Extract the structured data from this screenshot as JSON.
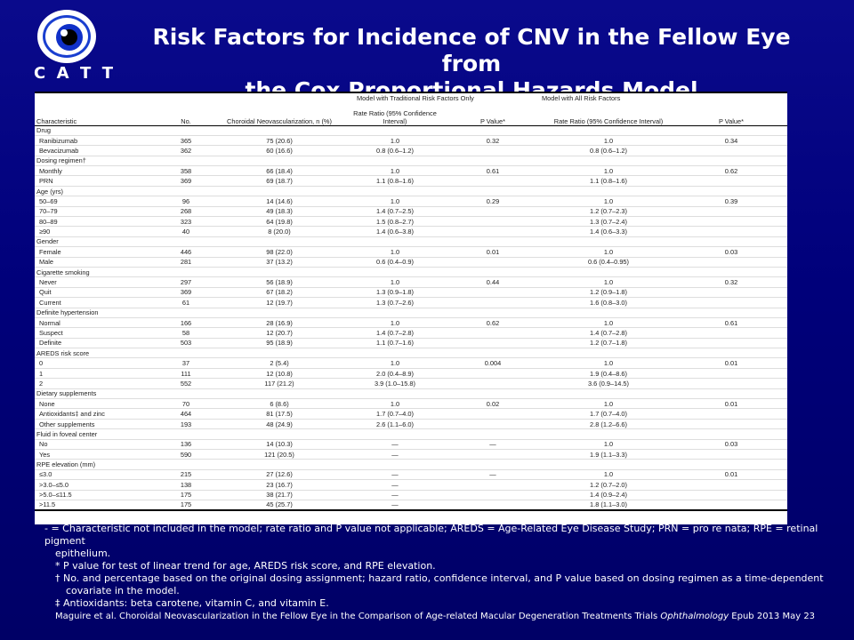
{
  "logo": {
    "letters": [
      "C",
      "A",
      "T",
      "T"
    ],
    "icon": "eye-icon"
  },
  "title": {
    "line1": "Risk Factors for Incidence of CNV in the Fellow Eye from",
    "line2": "the Cox Proportional Hazards Model"
  },
  "table": {
    "group_headers": {
      "traditional": "Model with Traditional Risk Factors Only",
      "all": "Model with All Risk Factors"
    },
    "columns": [
      "Characteristic",
      "No.",
      "Choroidal Neovascularization, n (%)",
      "Rate Ratio (95% Confidence Interval)",
      "P Value*",
      "Rate Ratio (95% Confidence Interval)",
      "P Value*"
    ],
    "rows": [
      {
        "k": "g",
        "label": "Drug"
      },
      {
        "k": "d",
        "c": [
          "Ranibizumab",
          "365",
          "75 (20.6)",
          "1.0",
          "0.32",
          "1.0",
          "0.34"
        ]
      },
      {
        "k": "d",
        "c": [
          "Bevacizumab",
          "362",
          "60 (16.6)",
          "0.8 (0.6–1.2)",
          "",
          "0.8 (0.6–1.2)",
          ""
        ]
      },
      {
        "k": "g",
        "label": "Dosing regimen†"
      },
      {
        "k": "d",
        "c": [
          "Monthly",
          "358",
          "66 (18.4)",
          "1.0",
          "0.61",
          "1.0",
          "0.62"
        ]
      },
      {
        "k": "d",
        "c": [
          "PRN",
          "369",
          "69 (18.7)",
          "1.1 (0.8–1.6)",
          "",
          "1.1 (0.8–1.6)",
          ""
        ]
      },
      {
        "k": "g",
        "label": "Age (yrs)"
      },
      {
        "k": "d",
        "c": [
          "50–69",
          "96",
          "14 (14.6)",
          "1.0",
          "0.29",
          "1.0",
          "0.39"
        ]
      },
      {
        "k": "d",
        "c": [
          "70–79",
          "268",
          "49 (18.3)",
          "1.4 (0.7–2.5)",
          "",
          "1.2 (0.7–2.3)",
          ""
        ]
      },
      {
        "k": "d",
        "c": [
          "80–89",
          "323",
          "64 (19.8)",
          "1.5 (0.8–2.7)",
          "",
          "1.3 (0.7–2.4)",
          ""
        ]
      },
      {
        "k": "d",
        "c": [
          "≥90",
          "40",
          "8 (20.0)",
          "1.4 (0.6–3.8)",
          "",
          "1.4 (0.6–3.3)",
          ""
        ]
      },
      {
        "k": "g",
        "label": "Gender"
      },
      {
        "k": "d",
        "c": [
          "Female",
          "446",
          "98 (22.0)",
          "1.0",
          "0.01",
          "1.0",
          "0.03"
        ]
      },
      {
        "k": "d",
        "c": [
          "Male",
          "281",
          "37 (13.2)",
          "0.6 (0.4–0.9)",
          "",
          "0.6 (0.4–0.95)",
          ""
        ]
      },
      {
        "k": "g",
        "label": "Cigarette smoking"
      },
      {
        "k": "d",
        "c": [
          "Never",
          "297",
          "56 (18.9)",
          "1.0",
          "0.44",
          "1.0",
          "0.32"
        ]
      },
      {
        "k": "d",
        "c": [
          "Quit",
          "369",
          "67 (18.2)",
          "1.3 (0.9–1.8)",
          "",
          "1.2 (0.9–1.8)",
          ""
        ]
      },
      {
        "k": "d",
        "c": [
          "Current",
          "61",
          "12 (19.7)",
          "1.3 (0.7–2.6)",
          "",
          "1.6 (0.8–3.0)",
          ""
        ]
      },
      {
        "k": "g",
        "label": "Definite hypertension"
      },
      {
        "k": "d",
        "c": [
          "Normal",
          "166",
          "28 (16.9)",
          "1.0",
          "0.62",
          "1.0",
          "0.61"
        ]
      },
      {
        "k": "d",
        "c": [
          "Suspect",
          "58",
          "12 (20.7)",
          "1.4 (0.7–2.8)",
          "",
          "1.4 (0.7–2.8)",
          ""
        ]
      },
      {
        "k": "d",
        "c": [
          "Definite",
          "503",
          "95 (18.9)",
          "1.1 (0.7–1.6)",
          "",
          "1.2 (0.7–1.8)",
          ""
        ]
      },
      {
        "k": "g",
        "label": "AREDS risk score"
      },
      {
        "k": "d",
        "c": [
          "0",
          "37",
          "2 (5.4)",
          "1.0",
          "0.004",
          "1.0",
          "0.01"
        ]
      },
      {
        "k": "d",
        "c": [
          "1",
          "111",
          "12 (10.8)",
          "2.0 (0.4–8.9)",
          "",
          "1.9 (0.4–8.6)",
          ""
        ]
      },
      {
        "k": "d",
        "c": [
          "2",
          "552",
          "117 (21.2)",
          "3.9 (1.0–15.8)",
          "",
          "3.6 (0.9–14.5)",
          ""
        ]
      },
      {
        "k": "g",
        "label": "Dietary supplements"
      },
      {
        "k": "d",
        "c": [
          "None",
          "70",
          "6 (8.6)",
          "1.0",
          "0.02",
          "1.0",
          "0.01"
        ]
      },
      {
        "k": "d",
        "c": [
          "Antioxidants‡ and zinc",
          "464",
          "81 (17.5)",
          "1.7 (0.7–4.0)",
          "",
          "1.7 (0.7–4.0)",
          ""
        ]
      },
      {
        "k": "d",
        "c": [
          "Other supplements",
          "193",
          "48 (24.9)",
          "2.6 (1.1–6.0)",
          "",
          "2.8 (1.2–6.6)",
          ""
        ]
      },
      {
        "k": "g",
        "label": "Fluid in foveal center"
      },
      {
        "k": "d",
        "c": [
          "No",
          "136",
          "14 (10.3)",
          "—",
          "—",
          "1.0",
          "0.03"
        ]
      },
      {
        "k": "d",
        "c": [
          "Yes",
          "590",
          "121 (20.5)",
          "—",
          "",
          "1.9 (1.1–3.3)",
          ""
        ]
      },
      {
        "k": "g",
        "label": "RPE elevation (mm)"
      },
      {
        "k": "d",
        "c": [
          "≤3.0",
          "215",
          "27 (12.6)",
          "—",
          "—",
          "1.0",
          "0.01"
        ]
      },
      {
        "k": "d",
        "c": [
          ">3.0–≤5.0",
          "138",
          "23 (16.7)",
          "—",
          "",
          "1.2 (0.7–2.0)",
          ""
        ]
      },
      {
        "k": "d",
        "c": [
          ">5.0–≤11.5",
          "175",
          "38 (21.7)",
          "—",
          "",
          "1.4 (0.9–2.4)",
          ""
        ]
      },
      {
        "k": "d",
        "c": [
          ">11.5",
          "175",
          "45 (25.7)",
          "—",
          "",
          "1.8 (1.1–3.0)",
          ""
        ]
      }
    ]
  },
  "notes": {
    "dash": "- = Characteristic not included in the model; rate ratio and P value not applicable; AREDS = Age-Related Eye Disease Study; PRN = pro re nata; RPE = retinal pigment",
    "dash_cont": "epithelium.",
    "star": "*  P value for test of linear trend for age, AREDS risk score, and RPE elevation.",
    "dagger": "† No. and percentage based on the original dosing assignment; hazard ratio, confidence interval, and P value based on dosing regimen as a time-dependent",
    "dagger_cont": "covariate in the model.",
    "ddagger": "‡  Antioxidants: beta carotene, vitamin C, and vitamin E."
  },
  "citation": {
    "text": "Maguire et al. Choroidal Neovascularization in the Fellow Eye in the Comparison of Age-related Macular Degeneration Treatments Trials ",
    "journal": "Ophthalmology",
    "tail": "  Epub 2013 May 23"
  }
}
